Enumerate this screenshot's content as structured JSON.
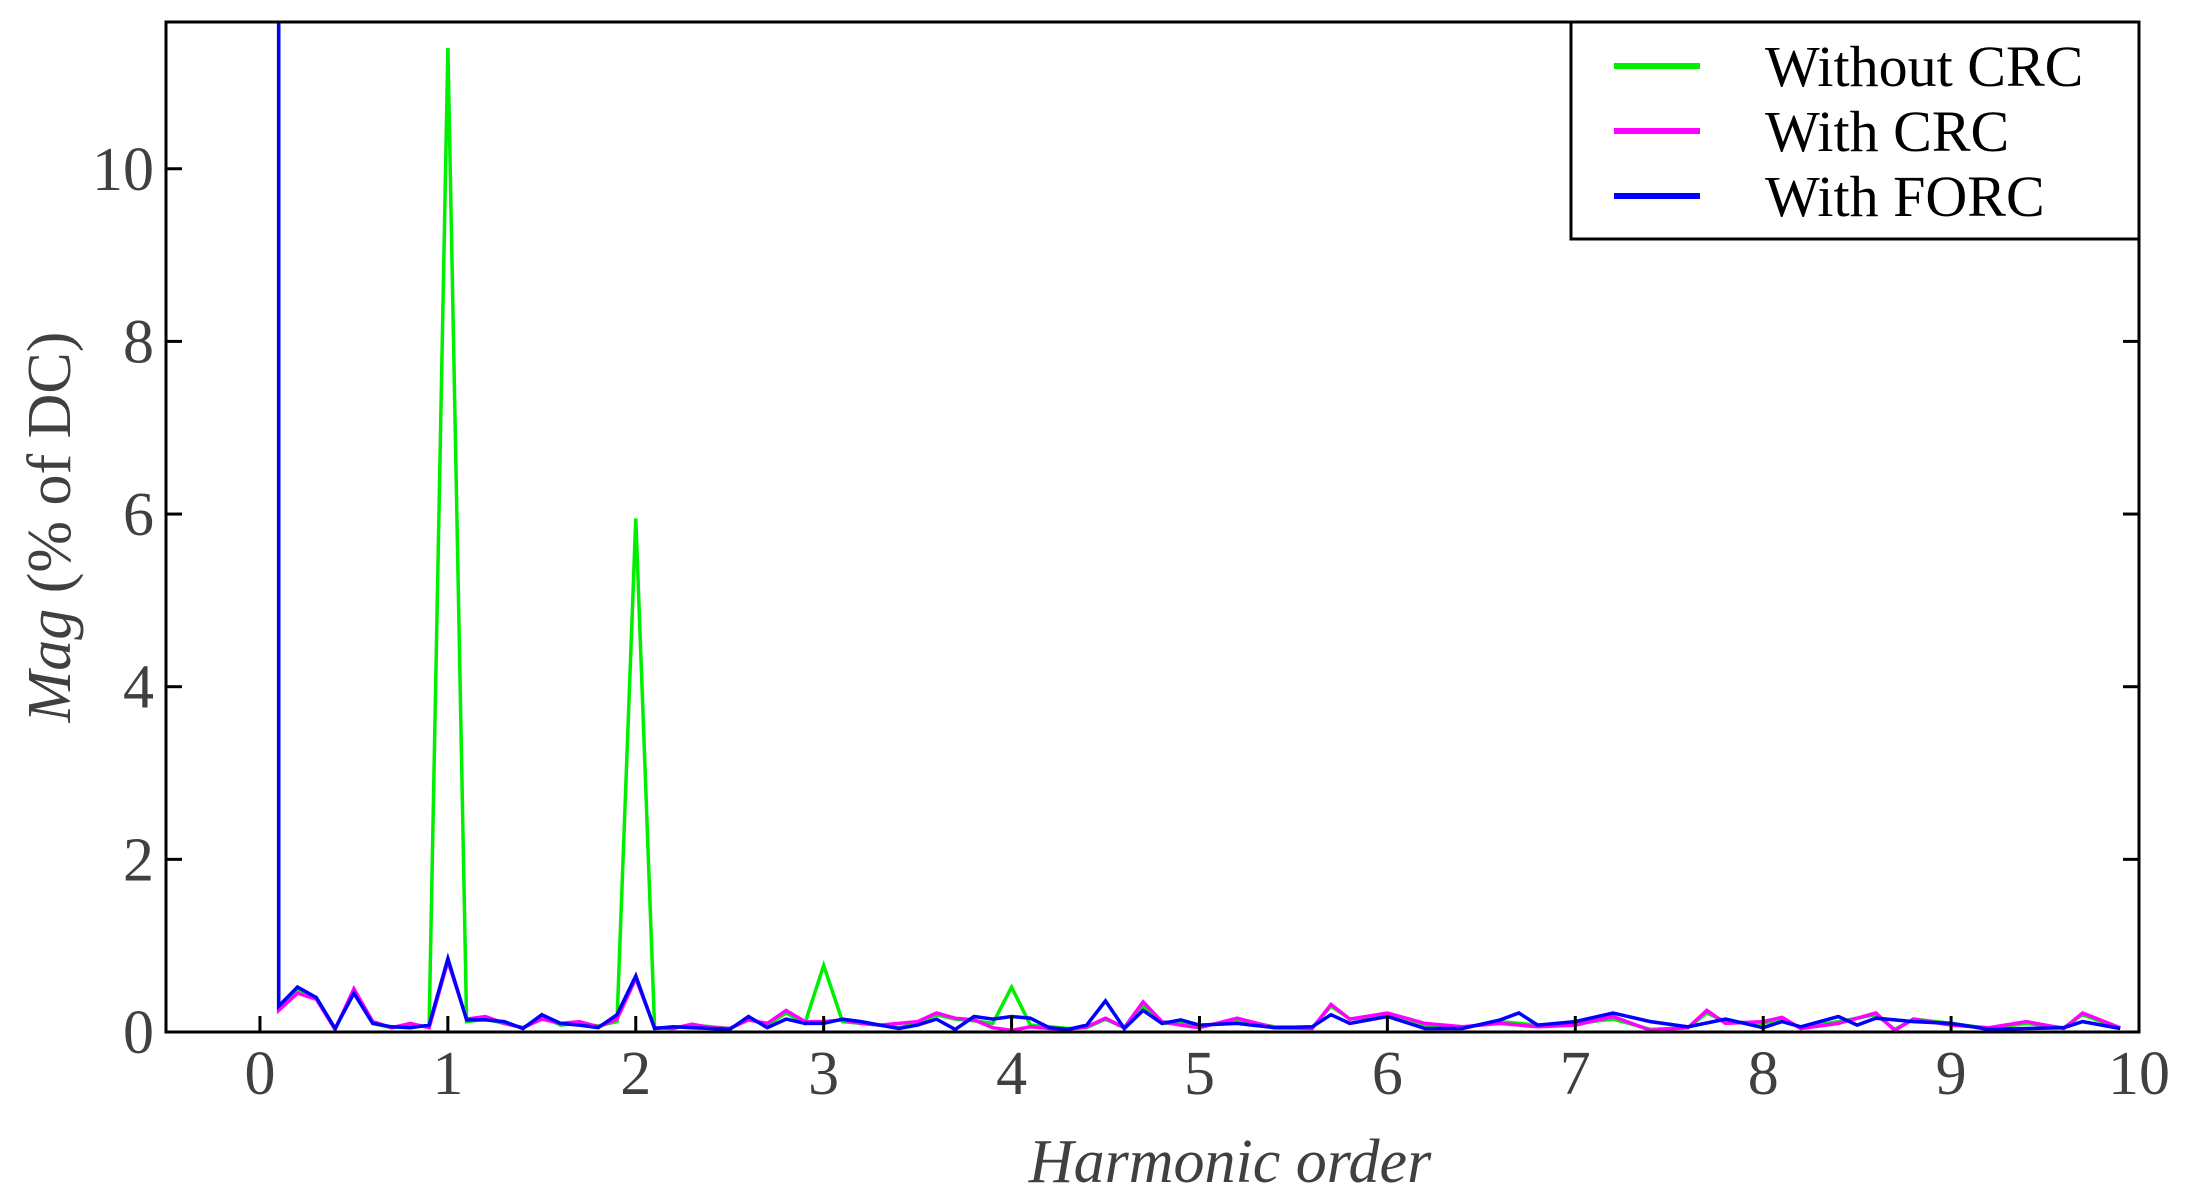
{
  "chart_data": {
    "type": "line",
    "title": "",
    "xlabel": "Harmonic order",
    "ylabel_italic": "Mag",
    "ylabel_rest": " (% of DC)",
    "xlim": [
      -0.5,
      10
    ],
    "ylim": [
      0,
      11.7
    ],
    "xticks": [
      0,
      1,
      2,
      3,
      4,
      5,
      6,
      7,
      8,
      9,
      10
    ],
    "yticks": [
      0,
      2,
      4,
      6,
      8,
      10
    ],
    "grid": false,
    "legend_position": "top-right",
    "series": [
      {
        "name": "Without CRC",
        "color": "#00ee00",
        "points": [
          [
            0.1,
            11.7
          ],
          [
            0.1,
            0.3
          ],
          [
            0.2,
            0.48
          ],
          [
            0.3,
            0.4
          ],
          [
            0.4,
            0.03
          ],
          [
            0.5,
            0.48
          ],
          [
            0.6,
            0.1
          ],
          [
            0.7,
            0.05
          ],
          [
            0.8,
            0.08
          ],
          [
            0.9,
            0.06
          ],
          [
            1.0,
            11.4
          ],
          [
            1.1,
            0.12
          ],
          [
            1.2,
            0.15
          ],
          [
            1.3,
            0.1
          ],
          [
            1.4,
            0.05
          ],
          [
            1.5,
            0.18
          ],
          [
            1.6,
            0.08
          ],
          [
            1.7,
            0.1
          ],
          [
            1.8,
            0.07
          ],
          [
            1.9,
            0.12
          ],
          [
            2.0,
            5.95
          ],
          [
            2.1,
            0.05
          ],
          [
            2.2,
            0.05
          ],
          [
            2.3,
            0.08
          ],
          [
            2.4,
            0.06
          ],
          [
            2.5,
            0.04
          ],
          [
            2.6,
            0.15
          ],
          [
            2.7,
            0.08
          ],
          [
            2.8,
            0.22
          ],
          [
            2.9,
            0.1
          ],
          [
            3.0,
            0.77
          ],
          [
            3.1,
            0.12
          ],
          [
            3.2,
            0.1
          ],
          [
            3.3,
            0.08
          ],
          [
            3.4,
            0.05
          ],
          [
            3.5,
            0.1
          ],
          [
            3.6,
            0.2
          ],
          [
            3.7,
            0.15
          ],
          [
            3.8,
            0.13
          ],
          [
            3.9,
            0.1
          ],
          [
            4.0,
            0.52
          ],
          [
            4.1,
            0.08
          ],
          [
            4.2,
            0.06
          ],
          [
            4.3,
            0.04
          ],
          [
            4.4,
            0.05
          ],
          [
            4.5,
            0.15
          ],
          [
            4.6,
            0.05
          ],
          [
            4.7,
            0.3
          ],
          [
            4.8,
            0.1
          ],
          [
            4.9,
            0.1
          ],
          [
            5.0,
            0.06
          ],
          [
            5.2,
            0.14
          ],
          [
            5.4,
            0.06
          ],
          [
            5.6,
            0.05
          ],
          [
            5.7,
            0.3
          ],
          [
            5.8,
            0.15
          ],
          [
            6.0,
            0.2
          ],
          [
            6.2,
            0.08
          ],
          [
            6.4,
            0.05
          ],
          [
            6.6,
            0.12
          ],
          [
            6.8,
            0.08
          ],
          [
            7.0,
            0.1
          ],
          [
            7.2,
            0.15
          ],
          [
            7.4,
            0.03
          ],
          [
            7.6,
            0.05
          ],
          [
            7.7,
            0.22
          ],
          [
            7.8,
            0.12
          ],
          [
            8.0,
            0.1
          ],
          [
            8.1,
            0.15
          ],
          [
            8.2,
            0.05
          ],
          [
            8.4,
            0.12
          ],
          [
            8.6,
            0.2
          ],
          [
            8.7,
            0.03
          ],
          [
            8.8,
            0.15
          ],
          [
            9.0,
            0.1
          ],
          [
            9.2,
            0.04
          ],
          [
            9.4,
            0.1
          ],
          [
            9.6,
            0.05
          ],
          [
            9.7,
            0.2
          ],
          [
            9.9,
            0.04
          ]
        ]
      },
      {
        "name": "With CRC",
        "color": "#ff00ff",
        "points": [
          [
            0.1,
            11.7
          ],
          [
            0.1,
            0.25
          ],
          [
            0.2,
            0.45
          ],
          [
            0.3,
            0.38
          ],
          [
            0.4,
            0.03
          ],
          [
            0.5,
            0.5
          ],
          [
            0.6,
            0.12
          ],
          [
            0.7,
            0.05
          ],
          [
            0.8,
            0.1
          ],
          [
            0.9,
            0.05
          ],
          [
            1.0,
            0.82
          ],
          [
            1.1,
            0.15
          ],
          [
            1.2,
            0.18
          ],
          [
            1.3,
            0.1
          ],
          [
            1.4,
            0.05
          ],
          [
            1.5,
            0.15
          ],
          [
            1.6,
            0.1
          ],
          [
            1.7,
            0.12
          ],
          [
            1.8,
            0.06
          ],
          [
            1.9,
            0.15
          ],
          [
            2.0,
            0.62
          ],
          [
            2.1,
            0.05
          ],
          [
            2.2,
            0.04
          ],
          [
            2.3,
            0.09
          ],
          [
            2.4,
            0.05
          ],
          [
            2.5,
            0.04
          ],
          [
            2.6,
            0.14
          ],
          [
            2.7,
            0.1
          ],
          [
            2.8,
            0.25
          ],
          [
            2.9,
            0.12
          ],
          [
            3.0,
            0.12
          ],
          [
            3.1,
            0.14
          ],
          [
            3.2,
            0.1
          ],
          [
            3.3,
            0.08
          ],
          [
            3.4,
            0.1
          ],
          [
            3.5,
            0.12
          ],
          [
            3.6,
            0.22
          ],
          [
            3.7,
            0.16
          ],
          [
            3.8,
            0.14
          ],
          [
            3.9,
            0.05
          ],
          [
            4.0,
            0.02
          ],
          [
            4.1,
            0.06
          ],
          [
            4.2,
            0.04
          ],
          [
            4.3,
            0.03
          ],
          [
            4.4,
            0.06
          ],
          [
            4.5,
            0.16
          ],
          [
            4.6,
            0.05
          ],
          [
            4.7,
            0.35
          ],
          [
            4.8,
            0.12
          ],
          [
            4.9,
            0.08
          ],
          [
            5.0,
            0.05
          ],
          [
            5.2,
            0.16
          ],
          [
            5.4,
            0.05
          ],
          [
            5.6,
            0.04
          ],
          [
            5.7,
            0.32
          ],
          [
            5.8,
            0.15
          ],
          [
            6.0,
            0.22
          ],
          [
            6.2,
            0.1
          ],
          [
            6.4,
            0.06
          ],
          [
            6.6,
            0.1
          ],
          [
            6.8,
            0.06
          ],
          [
            7.0,
            0.08
          ],
          [
            7.2,
            0.18
          ],
          [
            7.4,
            0.02
          ],
          [
            7.6,
            0.05
          ],
          [
            7.7,
            0.25
          ],
          [
            7.8,
            0.1
          ],
          [
            8.0,
            0.12
          ],
          [
            8.1,
            0.17
          ],
          [
            8.2,
            0.04
          ],
          [
            8.4,
            0.1
          ],
          [
            8.6,
            0.22
          ],
          [
            8.7,
            0.02
          ],
          [
            8.8,
            0.15
          ],
          [
            9.0,
            0.08
          ],
          [
            9.2,
            0.05
          ],
          [
            9.4,
            0.12
          ],
          [
            9.6,
            0.04
          ],
          [
            9.7,
            0.22
          ],
          [
            9.9,
            0.05
          ]
        ]
      },
      {
        "name": "With FORC",
        "color": "#0000ff",
        "points": [
          [
            0.1,
            11.7
          ],
          [
            0.1,
            0.3
          ],
          [
            0.2,
            0.52
          ],
          [
            0.3,
            0.4
          ],
          [
            0.4,
            0.04
          ],
          [
            0.5,
            0.45
          ],
          [
            0.6,
            0.1
          ],
          [
            0.7,
            0.06
          ],
          [
            0.8,
            0.05
          ],
          [
            0.9,
            0.08
          ],
          [
            1.0,
            0.85
          ],
          [
            1.1,
            0.14
          ],
          [
            1.2,
            0.14
          ],
          [
            1.3,
            0.12
          ],
          [
            1.4,
            0.04
          ],
          [
            1.5,
            0.2
          ],
          [
            1.6,
            0.1
          ],
          [
            1.7,
            0.08
          ],
          [
            1.8,
            0.05
          ],
          [
            1.9,
            0.2
          ],
          [
            2.0,
            0.65
          ],
          [
            2.1,
            0.04
          ],
          [
            2.2,
            0.06
          ],
          [
            2.3,
            0.05
          ],
          [
            2.4,
            0.04
          ],
          [
            2.5,
            0.03
          ],
          [
            2.6,
            0.18
          ],
          [
            2.7,
            0.05
          ],
          [
            2.8,
            0.15
          ],
          [
            2.9,
            0.1
          ],
          [
            3.0,
            0.1
          ],
          [
            3.1,
            0.15
          ],
          [
            3.2,
            0.12
          ],
          [
            3.3,
            0.08
          ],
          [
            3.4,
            0.04
          ],
          [
            3.5,
            0.08
          ],
          [
            3.6,
            0.15
          ],
          [
            3.7,
            0.03
          ],
          [
            3.8,
            0.18
          ],
          [
            3.9,
            0.15
          ],
          [
            4.0,
            0.18
          ],
          [
            4.1,
            0.16
          ],
          [
            4.2,
            0.05
          ],
          [
            4.3,
            0.03
          ],
          [
            4.4,
            0.08
          ],
          [
            4.5,
            0.36
          ],
          [
            4.6,
            0.04
          ],
          [
            4.7,
            0.25
          ],
          [
            4.8,
            0.1
          ],
          [
            4.9,
            0.14
          ],
          [
            5.0,
            0.08
          ],
          [
            5.2,
            0.1
          ],
          [
            5.4,
            0.05
          ],
          [
            5.6,
            0.06
          ],
          [
            5.7,
            0.2
          ],
          [
            5.8,
            0.1
          ],
          [
            6.0,
            0.18
          ],
          [
            6.2,
            0.04
          ],
          [
            6.4,
            0.04
          ],
          [
            6.6,
            0.14
          ],
          [
            6.7,
            0.22
          ],
          [
            6.8,
            0.08
          ],
          [
            7.0,
            0.12
          ],
          [
            7.2,
            0.22
          ],
          [
            7.4,
            0.12
          ],
          [
            7.6,
            0.06
          ],
          [
            7.8,
            0.15
          ],
          [
            8.0,
            0.05
          ],
          [
            8.1,
            0.12
          ],
          [
            8.2,
            0.06
          ],
          [
            8.4,
            0.18
          ],
          [
            8.5,
            0.08
          ],
          [
            8.6,
            0.16
          ],
          [
            8.8,
            0.12
          ],
          [
            9.0,
            0.1
          ],
          [
            9.2,
            0.03
          ],
          [
            9.4,
            0.04
          ],
          [
            9.6,
            0.05
          ],
          [
            9.7,
            0.12
          ],
          [
            9.9,
            0.04
          ]
        ]
      }
    ]
  }
}
